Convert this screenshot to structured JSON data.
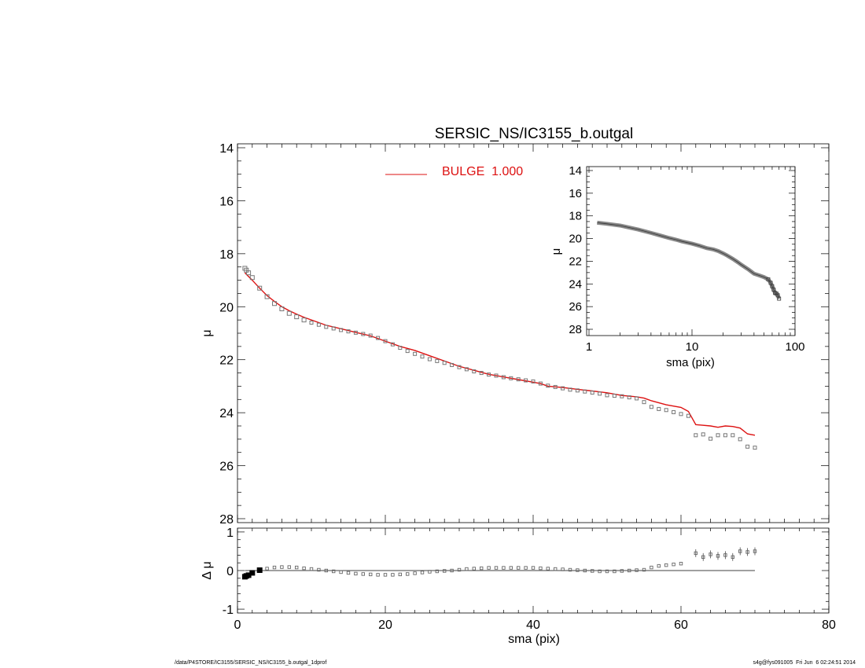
{
  "footer": {
    "path": "/data/P4STORE/IC3155/SERSIC_NS/IC3155_b.outgal_1dprof",
    "stamp": "s4g@fys091005  Fri Jun  6 02:24:51 2014"
  },
  "chart_data": [
    {
      "panel": "main",
      "type": "scatter",
      "title": "SERSIC_NS/IC3155_b.outgal",
      "xlabel": "",
      "ylabel": "μ",
      "xlim": [
        0,
        80
      ],
      "ylim": [
        28,
        14
      ],
      "yticks": [
        "14",
        "16",
        "18",
        "20",
        "22",
        "24",
        "26",
        "28"
      ],
      "grid": false,
      "legend": {
        "placement": "top-center",
        "entries": [
          "BULGE  1.000"
        ]
      },
      "colors": {
        "data": "#777777",
        "model": "#dd1111"
      },
      "series": [
        {
          "name": "",
          "style": "squares",
          "x": [
            1,
            1.2,
            1.5,
            2,
            3,
            4,
            5,
            6,
            7,
            8,
            9,
            10,
            11,
            12,
            13,
            14,
            15,
            16,
            17,
            18,
            19,
            20,
            21,
            22,
            23,
            24,
            25,
            26,
            27,
            28,
            29,
            30,
            31,
            32,
            33,
            34,
            35,
            36,
            37,
            38,
            39,
            40,
            41,
            42,
            43,
            44,
            45,
            46,
            47,
            48,
            49,
            50,
            51,
            52,
            53,
            54,
            55,
            56,
            57,
            58,
            59,
            60,
            61,
            62,
            63,
            64,
            65,
            66,
            67,
            68,
            69,
            70
          ],
          "y": [
            18.55,
            18.62,
            18.72,
            18.9,
            19.3,
            19.62,
            19.88,
            20.08,
            20.25,
            20.38,
            20.5,
            20.6,
            20.68,
            20.76,
            20.82,
            20.88,
            20.93,
            20.98,
            21.03,
            21.09,
            21.18,
            21.3,
            21.42,
            21.55,
            21.67,
            21.78,
            21.88,
            21.98,
            22.05,
            22.12,
            22.2,
            22.28,
            22.36,
            22.44,
            22.5,
            22.56,
            22.6,
            22.66,
            22.7,
            22.74,
            22.78,
            22.82,
            22.9,
            22.98,
            23.03,
            23.08,
            23.13,
            23.16,
            23.2,
            23.24,
            23.28,
            23.34,
            23.36,
            23.38,
            23.42,
            23.46,
            23.6,
            23.78,
            23.86,
            23.9,
            23.98,
            24.05,
            24.12,
            24.85,
            24.82,
            24.98,
            24.85,
            24.85,
            24.85,
            25.0,
            25.28,
            25.32
          ]
        },
        {
          "name": "BULGE  1.000",
          "style": "line",
          "x": [
            1,
            2,
            3,
            4,
            5,
            6,
            7,
            8,
            9,
            10,
            12,
            14,
            16,
            18,
            20,
            22,
            24,
            26,
            28,
            30,
            32,
            34,
            36,
            38,
            40,
            41,
            42,
            44,
            46,
            48,
            50,
            52,
            54,
            55,
            56,
            58,
            60,
            61,
            62,
            64,
            65,
            66,
            67,
            68,
            69,
            70
          ],
          "y": [
            18.72,
            19.0,
            19.3,
            19.58,
            19.8,
            20.0,
            20.15,
            20.28,
            20.4,
            20.5,
            20.7,
            20.83,
            20.97,
            21.1,
            21.3,
            21.5,
            21.65,
            21.85,
            22.05,
            22.25,
            22.4,
            22.55,
            22.65,
            22.75,
            22.85,
            22.9,
            23.0,
            23.05,
            23.12,
            23.18,
            23.25,
            23.35,
            23.4,
            23.45,
            23.55,
            23.7,
            23.8,
            23.95,
            24.45,
            24.5,
            24.55,
            24.5,
            24.52,
            24.58,
            24.8,
            24.85
          ]
        }
      ]
    },
    {
      "panel": "residual",
      "type": "scatter",
      "title": "",
      "xlabel": "sma (pix)",
      "ylabel": "Δ μ",
      "xlim": [
        0,
        80
      ],
      "ylim": [
        -1.1,
        1.1
      ],
      "xticks": [
        "0",
        "20",
        "40",
        "60",
        "80"
      ],
      "yticks": [
        "-1",
        "0",
        "1"
      ],
      "grid": false,
      "reference_line": 0,
      "series": [
        {
          "name": "",
          "style": "squares",
          "x": [
            1,
            1.2,
            1.5,
            2,
            3,
            4,
            5,
            6,
            7,
            8,
            9,
            10,
            11,
            12,
            13,
            14,
            15,
            16,
            17,
            18,
            19,
            20,
            21,
            22,
            23,
            24,
            25,
            26,
            27,
            28,
            29,
            30,
            31,
            32,
            33,
            34,
            35,
            36,
            37,
            38,
            39,
            40,
            41,
            42,
            43,
            44,
            45,
            46,
            47,
            48,
            49,
            50,
            51,
            52,
            53,
            54,
            55,
            56,
            57,
            58,
            59,
            60,
            62,
            63,
            64,
            65,
            66,
            67,
            68,
            69,
            70
          ],
          "y": [
            -0.16,
            -0.14,
            -0.12,
            -0.06,
            0.01,
            0.05,
            0.08,
            0.09,
            0.09,
            0.08,
            0.06,
            0.04,
            0.02,
            0.0,
            -0.02,
            -0.04,
            -0.06,
            -0.08,
            -0.09,
            -0.1,
            -0.11,
            -0.11,
            -0.11,
            -0.1,
            -0.09,
            -0.07,
            -0.05,
            -0.03,
            -0.02,
            -0.01,
            0.0,
            0.02,
            0.04,
            0.05,
            0.06,
            0.07,
            0.07,
            0.07,
            0.07,
            0.07,
            0.07,
            0.07,
            0.06,
            0.05,
            0.04,
            0.03,
            0.02,
            0.01,
            0.0,
            -0.01,
            -0.02,
            -0.02,
            -0.02,
            -0.01,
            0.0,
            0.01,
            0.02,
            0.08,
            0.12,
            0.14,
            0.16,
            0.18,
            0.45,
            0.35,
            0.42,
            0.38,
            0.4,
            0.35,
            0.5,
            0.48,
            0.5
          ]
        }
      ]
    },
    {
      "panel": "inset",
      "type": "scatter",
      "title": "",
      "xlabel": "sma (pix)",
      "ylabel": "μ",
      "xscale": "log",
      "xlim": [
        1,
        100
      ],
      "ylim": [
        28,
        14
      ],
      "xticks": [
        "1",
        "10",
        "100"
      ],
      "yticks": [
        "14",
        "16",
        "18",
        "20",
        "22",
        "24",
        "26",
        "28"
      ],
      "grid": false,
      "series": [
        {
          "name": "",
          "style": "squares",
          "x": [
            1.2,
            1.5,
            2,
            3,
            4,
            5,
            6,
            7,
            8,
            10,
            12,
            14,
            16,
            18,
            20,
            22,
            25,
            28,
            30,
            35,
            40,
            45,
            50,
            55,
            58,
            60,
            62,
            64,
            66,
            68,
            70
          ],
          "y": [
            18.6,
            18.7,
            18.85,
            19.2,
            19.5,
            19.75,
            19.95,
            20.1,
            20.25,
            20.45,
            20.65,
            20.85,
            20.95,
            21.1,
            21.3,
            21.5,
            21.8,
            22.1,
            22.3,
            22.7,
            23.1,
            23.25,
            23.4,
            23.6,
            23.9,
            24.2,
            24.5,
            24.8,
            24.85,
            25.0,
            25.3
          ]
        }
      ]
    }
  ]
}
